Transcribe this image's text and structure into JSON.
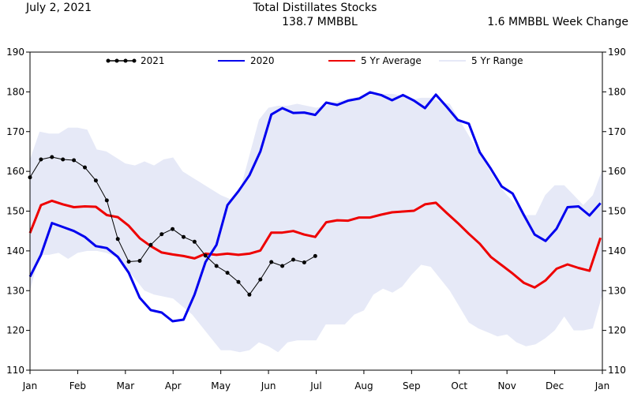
{
  "header": {
    "date": "July 2, 2021",
    "title": "Total Distillates Stocks",
    "value": "138.7 MMBBL",
    "change": "1.6 MMBBL Week Change"
  },
  "chart_data": {
    "type": "line",
    "title": "Total Distillates Stocks",
    "ylim": [
      110,
      190
    ],
    "yticks": [
      110,
      120,
      130,
      140,
      150,
      160,
      170,
      180,
      190
    ],
    "xlim": [
      0,
      12
    ],
    "xticks": [
      {
        "label": "Jan",
        "pos": 0
      },
      {
        "label": "Feb",
        "pos": 1
      },
      {
        "label": "Mar",
        "pos": 2
      },
      {
        "label": "Apr",
        "pos": 3
      },
      {
        "label": "May",
        "pos": 4
      },
      {
        "label": "Jun",
        "pos": 5
      },
      {
        "label": "Jul",
        "pos": 6
      },
      {
        "label": "Aug",
        "pos": 7
      },
      {
        "label": "Sep",
        "pos": 8
      },
      {
        "label": "Oct",
        "pos": 9
      },
      {
        "label": "Nov",
        "pos": 10
      },
      {
        "label": "Dec",
        "pos": 11
      },
      {
        "label": "Jan",
        "pos": 12
      }
    ],
    "grid": false,
    "legend_position": "top",
    "colors": {
      "2021": "#000000",
      "2020": "#0000ee",
      "5 Yr Average": "#ee0000",
      "5 Yr Range": "#e6e9f7"
    },
    "range": {
      "name": "5 Yr Range",
      "x": [
        0,
        0.2,
        0.4,
        0.6,
        0.8,
        1.0,
        1.2,
        1.4,
        1.6,
        1.8,
        2.0,
        2.2,
        2.4,
        2.6,
        2.8,
        3.0,
        3.2,
        3.4,
        3.6,
        3.8,
        4.0,
        4.2,
        4.4,
        4.6,
        4.8,
        5.0,
        5.2,
        5.4,
        5.6,
        5.8,
        6.0,
        6.2,
        6.4,
        6.6,
        6.8,
        7.0,
        7.2,
        7.4,
        7.6,
        7.8,
        8.0,
        8.2,
        8.4,
        8.6,
        8.8,
        9.0,
        9.2,
        9.4,
        9.6,
        9.8,
        10.0,
        10.2,
        10.4,
        10.6,
        10.8,
        11.0,
        11.2,
        11.4,
        11.6,
        11.8,
        12.0
      ],
      "high": [
        163,
        170,
        169.5,
        169.5,
        171,
        171,
        170.5,
        165.5,
        165,
        163.5,
        162,
        161.5,
        162.5,
        161.5,
        163,
        163.5,
        160,
        158.5,
        157,
        155.5,
        154,
        153,
        155,
        164,
        173,
        176,
        176.5,
        176.5,
        177,
        176.5,
        176,
        176.5,
        177.5,
        178,
        178.5,
        179,
        179.5,
        179.5,
        179.5,
        179,
        178,
        178.5,
        178.5,
        177.5,
        177,
        173,
        169,
        165,
        161,
        157,
        154,
        151.5,
        149,
        149,
        154,
        156.5,
        156.5,
        154,
        151.5,
        154,
        160.5
      ],
      "low": [
        130,
        139,
        139,
        139.5,
        138,
        139.5,
        140,
        140,
        139.5,
        138.5,
        136,
        133,
        130,
        129,
        128.5,
        128,
        126,
        124,
        121,
        118,
        115,
        115,
        114.5,
        115,
        117,
        116,
        114.5,
        117,
        117.5,
        117.5,
        117.5,
        121.5,
        121.5,
        121.5,
        124,
        125,
        129,
        130.5,
        129.5,
        131,
        134,
        136.5,
        136,
        133,
        130,
        126,
        122,
        120.5,
        119.5,
        118.5,
        119,
        117,
        116,
        116.5,
        118,
        120,
        123.5,
        120,
        120,
        120.5,
        129
      ]
    },
    "series": [
      {
        "name": "2021",
        "markers": true,
        "x": [
          0,
          0.23,
          0.46,
          0.69,
          0.92,
          1.15,
          1.38,
          1.61,
          1.84,
          2.07,
          2.3,
          2.53,
          2.76,
          2.99,
          3.22,
          3.45,
          3.68,
          3.91,
          4.14,
          4.37,
          4.6,
          4.83,
          5.06,
          5.29,
          5.52,
          5.75,
          5.98
        ],
        "values": [
          158.5,
          163,
          163.6,
          163,
          162.8,
          161,
          157.7,
          152.7,
          143,
          137.3,
          137.5,
          141.5,
          144.2,
          145.5,
          143.5,
          142.3,
          138.8,
          136.2,
          134.5,
          132.2,
          129,
          132.8,
          137.2,
          136.2,
          137.8,
          137.1,
          138.7
        ]
      },
      {
        "name": "2020",
        "markers": false,
        "x": [
          0,
          0.23,
          0.46,
          0.69,
          0.92,
          1.15,
          1.38,
          1.61,
          1.84,
          2.07,
          2.3,
          2.53,
          2.76,
          2.99,
          3.22,
          3.45,
          3.68,
          3.91,
          4.14,
          4.37,
          4.6,
          4.83,
          5.06,
          5.29,
          5.52,
          5.75,
          5.98,
          6.21,
          6.44,
          6.67,
          6.9,
          7.13,
          7.36,
          7.59,
          7.82,
          8.05,
          8.28,
          8.51,
          8.74,
          8.97,
          9.2,
          9.43,
          9.66,
          9.89,
          10.12,
          10.35,
          10.58,
          10.81,
          11.04,
          11.27,
          11.5,
          11.73,
          11.96
        ],
        "values": [
          133.5,
          139,
          147,
          146,
          145,
          143.5,
          141.2,
          140.7,
          138.5,
          134.5,
          128.2,
          125.1,
          124.5,
          122.3,
          122.7,
          129,
          137.2,
          141.5,
          151.5,
          155,
          159,
          165,
          174.3,
          175.9,
          174.7,
          174.8,
          174.2,
          177.3,
          176.7,
          177.8,
          178.3,
          179.9,
          179.2,
          177.9,
          179.2,
          177.8,
          175.9,
          179.3,
          176.2,
          172.9,
          172,
          164.8,
          160.7,
          156.2,
          154.4,
          149.1,
          144.1,
          142.5,
          145.6,
          151,
          151.2,
          148.9,
          152
        ]
      },
      {
        "name": "5 Yr Average",
        "markers": false,
        "x": [
          0,
          0.23,
          0.46,
          0.69,
          0.92,
          1.15,
          1.38,
          1.61,
          1.84,
          2.07,
          2.3,
          2.53,
          2.76,
          2.99,
          3.22,
          3.45,
          3.68,
          3.91,
          4.14,
          4.37,
          4.6,
          4.83,
          5.06,
          5.29,
          5.52,
          5.75,
          5.98,
          6.21,
          6.44,
          6.67,
          6.9,
          7.13,
          7.36,
          7.59,
          7.82,
          8.05,
          8.28,
          8.51,
          8.74,
          8.97,
          9.2,
          9.43,
          9.66,
          9.89,
          10.12,
          10.35,
          10.58,
          10.81,
          11.04,
          11.27,
          11.5,
          11.73,
          11.96
        ],
        "values": [
          144.5,
          151.5,
          152.6,
          151.7,
          151,
          151.2,
          151.1,
          149,
          148.5,
          146.3,
          143.2,
          141.2,
          139.6,
          139.1,
          138.7,
          138.1,
          139.3,
          139,
          139.3,
          139,
          139.3,
          140.1,
          144.6,
          144.6,
          145,
          144.1,
          143.5,
          147.2,
          147.7,
          147.6,
          148.4,
          148.4,
          149.1,
          149.7,
          149.9,
          150.1,
          151.7,
          152.1,
          149.5,
          147,
          144.3,
          141.8,
          138.5,
          136.4,
          134.3,
          132,
          130.8,
          132.6,
          135.5,
          136.6,
          135.7,
          135,
          143.3
        ]
      }
    ]
  }
}
